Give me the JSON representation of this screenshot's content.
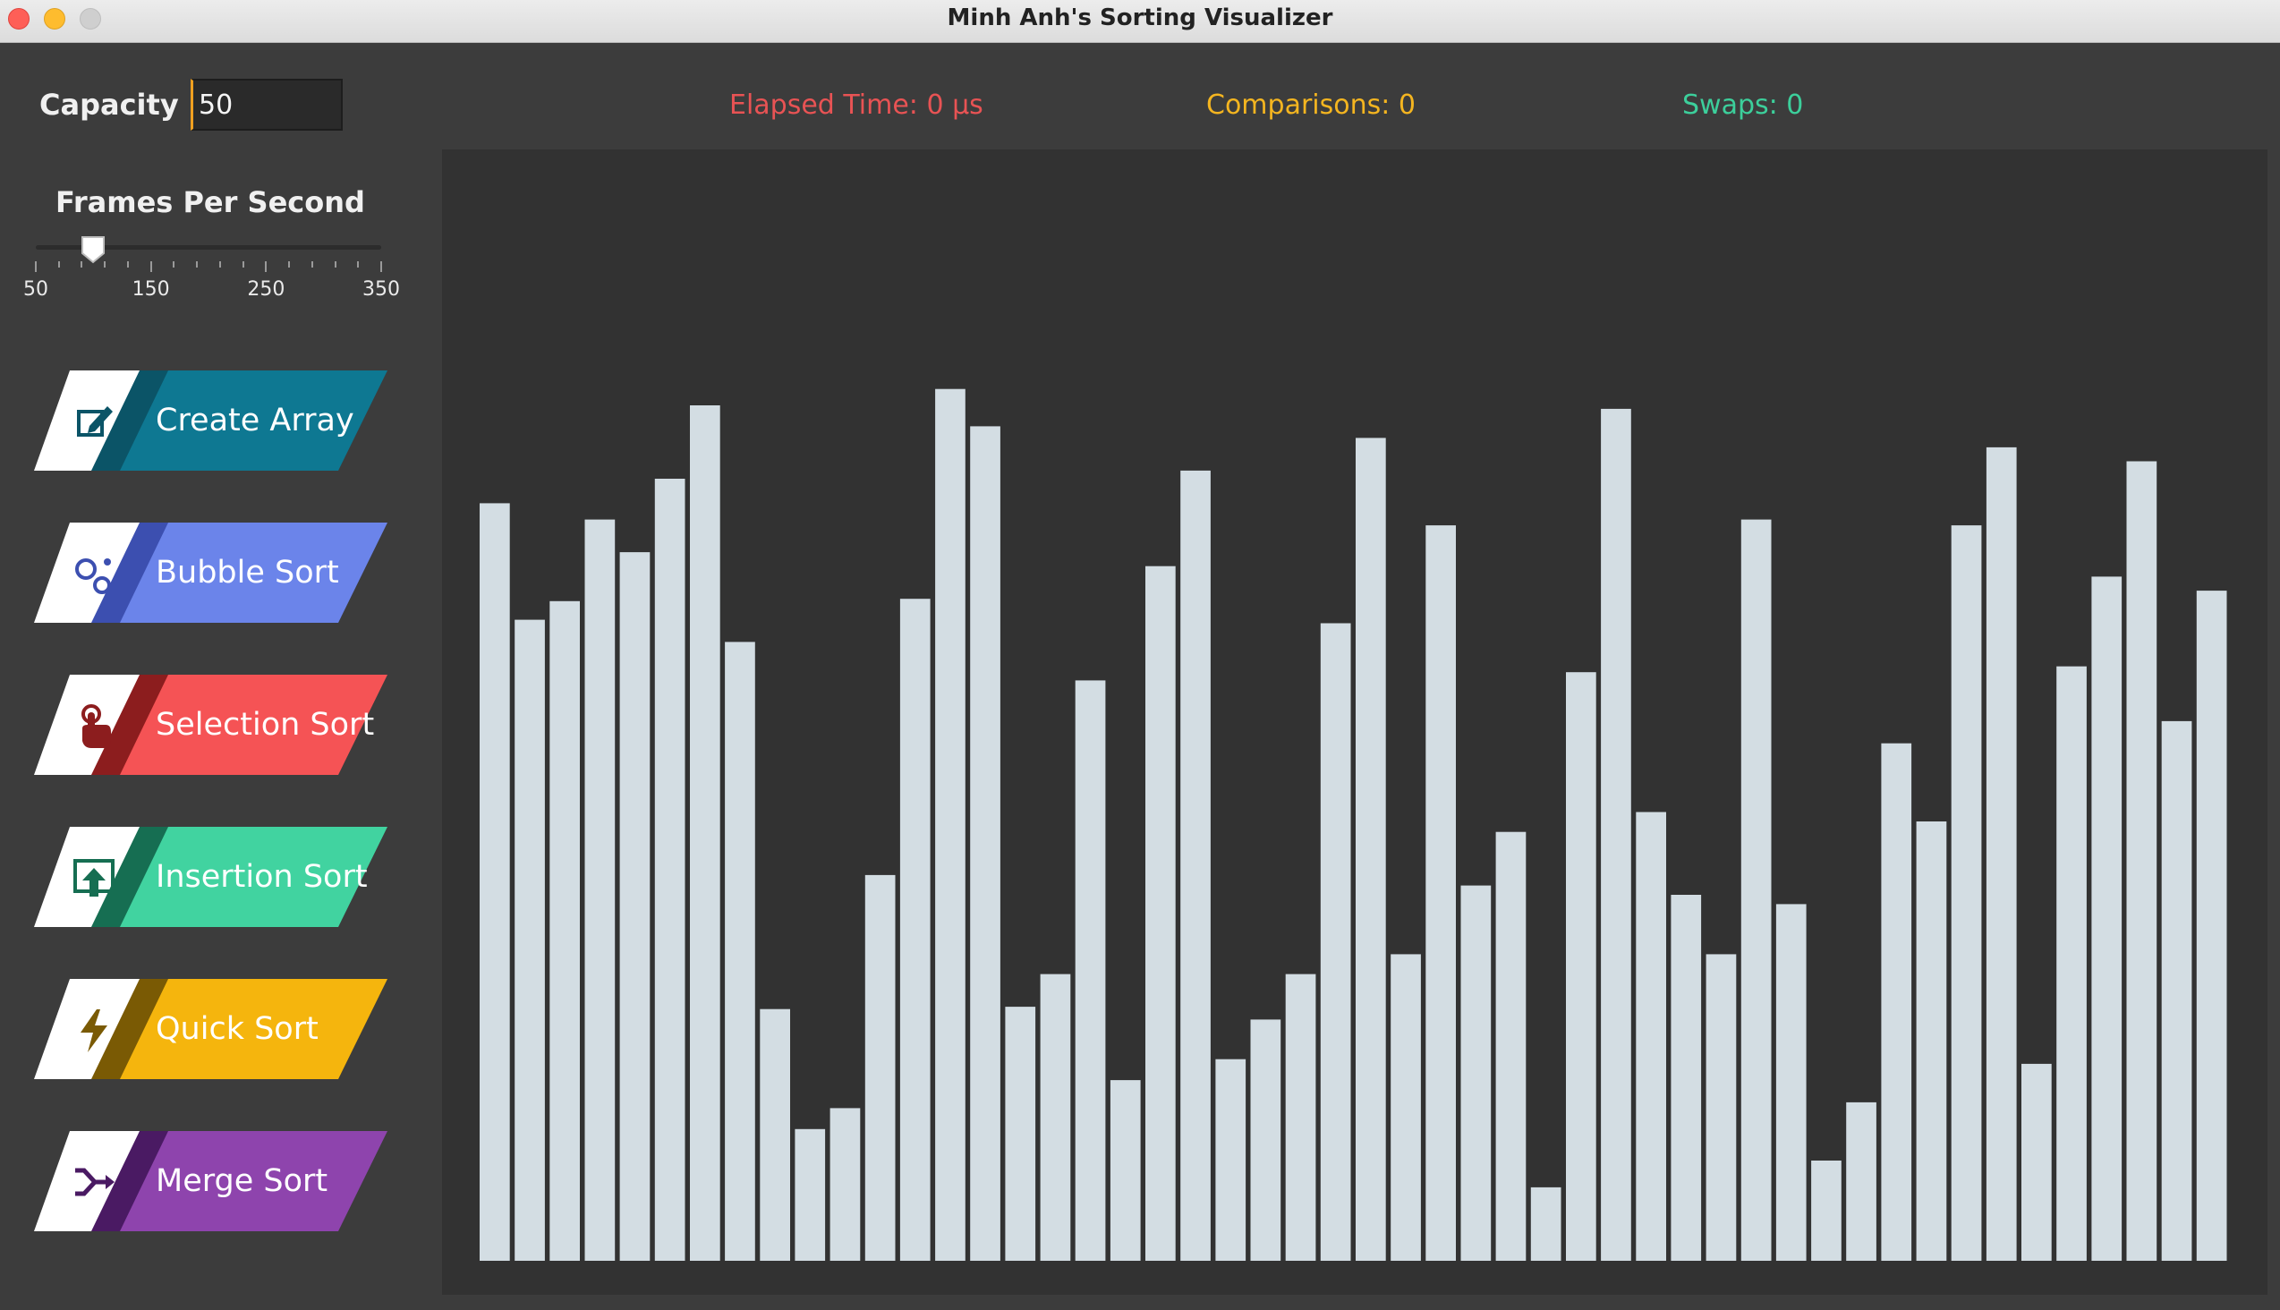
{
  "window": {
    "title": "Minh Anh's Sorting Visualizer"
  },
  "controls": {
    "capacity_label": "Capacity",
    "capacity_value": "50",
    "fps_label": "Frames Per Second",
    "fps_value": 100,
    "fps_min": 50,
    "fps_max": 350,
    "fps_tick_labels": [
      "50",
      "150",
      "250",
      "350"
    ]
  },
  "stats": {
    "elapsed": "Elapsed Time: 0 μs",
    "comparisons": "Comparisons: 0",
    "swaps": "Swaps: 0"
  },
  "buttons": [
    {
      "label": "Create Array",
      "icon": "edit-icon",
      "color": "#0e7892",
      "dark": "#0b5467"
    },
    {
      "label": "Bubble Sort",
      "icon": "bubbles-icon",
      "color": "#6b84ea",
      "dark": "#3c4fb0"
    },
    {
      "label": "Selection Sort",
      "icon": "pointer-hand-icon",
      "color": "#f55355",
      "dark": "#8c1d1e"
    },
    {
      "label": "Insertion Sort",
      "icon": "upload-icon",
      "color": "#41d3a0",
      "dark": "#166e52"
    },
    {
      "label": "Quick Sort",
      "icon": "lightning-icon",
      "color": "#f5b50d",
      "dark": "#7a5a04"
    },
    {
      "label": "Merge Sort",
      "icon": "merge-icon",
      "color": "#8e44ad",
      "dark": "#4a1a63"
    }
  ],
  "chart_data": {
    "type": "bar",
    "bar_color": "#d3dde3",
    "values": [
      650,
      550,
      566,
      636,
      608,
      671,
      734,
      531,
      216,
      113,
      131,
      331,
      568,
      748,
      716,
      218,
      246,
      498,
      155,
      596,
      678,
      173,
      207,
      246,
      547,
      706,
      263,
      631,
      322,
      368,
      63,
      505,
      731,
      385,
      314,
      263,
      636,
      306,
      86,
      136,
      444,
      377,
      631,
      698,
      169,
      510,
      587,
      686,
      463,
      575
    ]
  }
}
